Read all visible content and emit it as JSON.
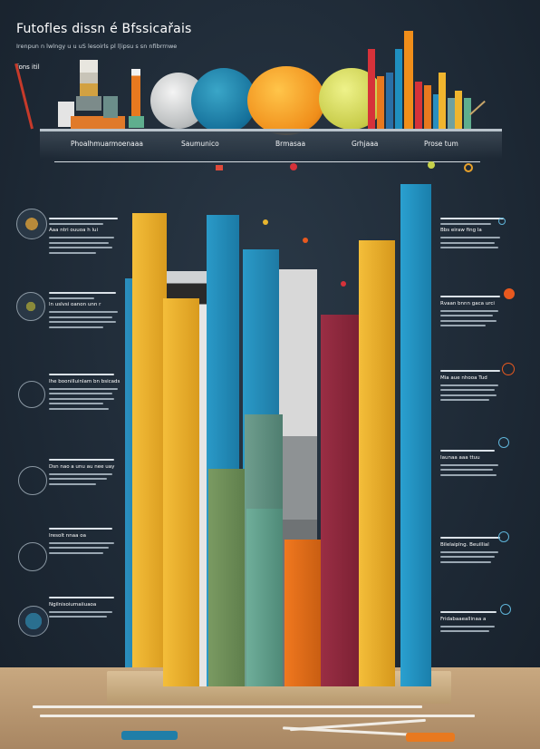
{
  "header": {
    "title": "Futofles dissn é Bfssicařais",
    "subtitle": "Irenpun n lwlngy u u  uS  lesoirls pl l|ipsu s sn  nfibrrnwe",
    "tag": "fons itil"
  },
  "shelf_labels": [
    "Phoalhmuarmoenaaa",
    "Saumunico",
    "Brmasaa",
    "Grhjaaa",
    "Prose tum"
  ],
  "left_notes": [
    {
      "heading": "Aaa ntri ouuoa h lui",
      "lines": 5
    },
    {
      "heading": "ln uslvsi oanon unn r",
      "lines": 5
    },
    {
      "heading": "Ihe boonilluinlam bn bsicads",
      "lines": 6
    },
    {
      "heading": "Dsn nao a unu au nee uay",
      "lines": 5
    },
    {
      "heading": "Iresolt nnaa oa",
      "lines": 4
    },
    {
      "heading": "Ngilnisoiumaiiuaoa",
      "lines": 4
    }
  ],
  "right_notes": [
    {
      "heading": "Bbs eiraw fing la",
      "lines": 5
    },
    {
      "heading": "Rvaan bnnn gaca urci",
      "lines": 5
    },
    {
      "heading": "Mia aue nhooa Tud",
      "lines": 5
    },
    {
      "heading": "Iaunaa aaa ttuu",
      "lines": 5
    },
    {
      "heading": "Bilelaiplng. Beuillial",
      "lines": 5
    },
    {
      "heading": "Fridabaaeallinaa a",
      "lines": 5
    }
  ],
  "colors": {
    "blue": "#2a8fbf",
    "teal": "#1f7ea8",
    "yellow": "#f0b52e",
    "orange": "#e8791f",
    "green": "#6f8f5a",
    "sage": "#5f8c7e",
    "crimson": "#8e2a3e",
    "grey": "#9aa0a3",
    "lime": "#cfd25a"
  }
}
